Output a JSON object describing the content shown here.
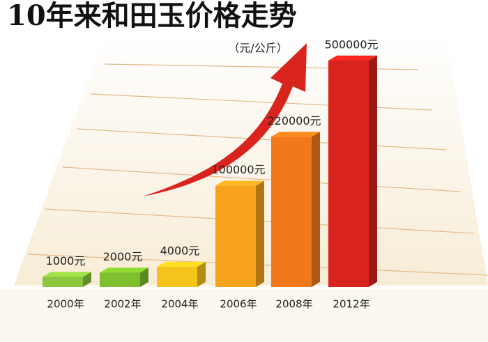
{
  "chart_data": {
    "type": "bar3d",
    "title": "10年来和田玉价格走势",
    "subtitle": "（元/公斤）",
    "categories": [
      "2000年",
      "2002年",
      "2004年",
      "2006年",
      "2008年",
      "2012年"
    ],
    "values": [
      1000,
      2000,
      4000,
      100000,
      220000,
      500000
    ],
    "value_labels": [
      "1000元",
      "2000元",
      "4000元",
      "100000元",
      "220000元",
      "500000元"
    ],
    "colors": [
      "#8cc63f",
      "#7dbf2e",
      "#f6c21c",
      "#f6a21d",
      "#f07a1a",
      "#d9231d"
    ],
    "value_scale": "sqrt"
  }
}
